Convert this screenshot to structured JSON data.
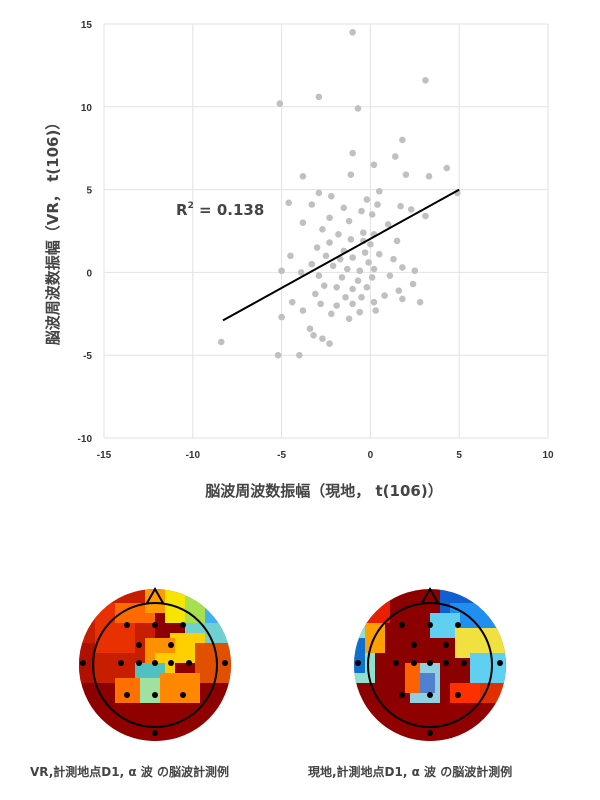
{
  "chart_data": {
    "type": "scatter",
    "title": "",
    "xlabel": "脳波周波数振幅（現地， t(106)）",
    "ylabel": "脳波周波数振幅（VR， t(106)）",
    "xlim": [
      -15,
      10
    ],
    "ylim": [
      -10,
      15
    ],
    "xticks": [
      -15,
      -10,
      -5,
      0,
      5,
      10
    ],
    "yticks": [
      -10,
      -5,
      0,
      5,
      10,
      15
    ],
    "grid": true,
    "annotation": "R² = 0.138",
    "annotation_parts": {
      "prefix": "R",
      "superscript": "2",
      "suffix": " = 0.138"
    },
    "point_color": "#c0c0c0",
    "trendline_color": "#000000",
    "trendline": {
      "x": [
        -8.3,
        5.0
      ],
      "y": [
        -2.9,
        5.0
      ]
    },
    "points": [
      [
        -1.0,
        14.5
      ],
      [
        3.1,
        11.6
      ],
      [
        -5.1,
        10.2
      ],
      [
        -2.9,
        10.6
      ],
      [
        -0.7,
        9.9
      ],
      [
        1.8,
        8.0
      ],
      [
        -1.0,
        7.2
      ],
      [
        4.3,
        6.3
      ],
      [
        3.3,
        5.8
      ],
      [
        2.0,
        5.9
      ],
      [
        0.2,
        6.5
      ],
      [
        1.4,
        7.0
      ],
      [
        -1.1,
        5.9
      ],
      [
        -3.8,
        5.8
      ],
      [
        4.9,
        4.8
      ],
      [
        -2.9,
        4.8
      ],
      [
        -0.2,
        4.4
      ],
      [
        0.5,
        4.9
      ],
      [
        -2.2,
        4.6
      ],
      [
        -4.6,
        4.2
      ],
      [
        -3.3,
        4.1
      ],
      [
        1.7,
        4.0
      ],
      [
        2.3,
        3.8
      ],
      [
        0.4,
        4.1
      ],
      [
        -1.5,
        3.9
      ],
      [
        -0.5,
        3.7
      ],
      [
        3.1,
        3.4
      ],
      [
        -2.3,
        3.3
      ],
      [
        -3.8,
        3.0
      ],
      [
        -1.2,
        3.1
      ],
      [
        0.1,
        3.5
      ],
      [
        1.0,
        2.9
      ],
      [
        -2.7,
        2.6
      ],
      [
        -1.8,
        2.3
      ],
      [
        -0.4,
        2.4
      ],
      [
        0.2,
        2.3
      ],
      [
        -1.1,
        2.0
      ],
      [
        -0.4,
        1.9
      ],
      [
        0.0,
        1.7
      ],
      [
        -2.3,
        1.8
      ],
      [
        -3.0,
        1.5
      ],
      [
        1.5,
        1.9
      ],
      [
        -1.5,
        1.3
      ],
      [
        -0.3,
        1.2
      ],
      [
        0.5,
        1.1
      ],
      [
        -4.5,
        1.0
      ],
      [
        -2.5,
        1.0
      ],
      [
        -1.0,
        0.9
      ],
      [
        -0.1,
        0.6
      ],
      [
        1.3,
        0.8
      ],
      [
        1.8,
        0.3
      ],
      [
        2.5,
        0.1
      ],
      [
        -3.3,
        0.5
      ],
      [
        -2.1,
        0.4
      ],
      [
        -1.3,
        0.2
      ],
      [
        -0.6,
        0.1
      ],
      [
        0.2,
        0.2
      ],
      [
        -5.0,
        0.1
      ],
      [
        -3.9,
        0.0
      ],
      [
        -2.9,
        -0.2
      ],
      [
        -1.6,
        -0.3
      ],
      [
        -0.7,
        -0.5
      ],
      [
        0.1,
        -0.3
      ],
      [
        1.1,
        -0.2
      ],
      [
        -2.6,
        -0.8
      ],
      [
        -1.9,
        -0.9
      ],
      [
        -1.0,
        -1.0
      ],
      [
        -0.2,
        -0.9
      ],
      [
        2.4,
        -0.7
      ],
      [
        1.6,
        -1.1
      ],
      [
        -3.1,
        -1.3
      ],
      [
        -1.4,
        -1.5
      ],
      [
        -0.5,
        -1.5
      ],
      [
        -4.4,
        -1.8
      ],
      [
        -2.8,
        -1.9
      ],
      [
        -1.9,
        -2.0
      ],
      [
        -1.0,
        -1.9
      ],
      [
        0.2,
        -1.8
      ],
      [
        1.8,
        -1.6
      ],
      [
        2.8,
        -1.8
      ],
      [
        -3.8,
        -2.3
      ],
      [
        -2.2,
        -2.5
      ],
      [
        -0.6,
        -2.4
      ],
      [
        0.3,
        -2.3
      ],
      [
        -5.0,
        -2.7
      ],
      [
        -3.4,
        -3.4
      ],
      [
        -3.2,
        -3.8
      ],
      [
        -2.7,
        -4.0
      ],
      [
        -2.3,
        -4.3
      ],
      [
        -8.4,
        -4.2
      ],
      [
        -5.2,
        -5.0
      ],
      [
        -4.0,
        -5.0
      ],
      [
        -1.2,
        -2.8
      ],
      [
        0.8,
        -1.4
      ],
      [
        -1.7,
        0.8
      ]
    ]
  },
  "topomaps": [
    {
      "caption": "VR,計測地点D1, α 波 の脳波計測例"
    },
    {
      "caption": "現地,計測地点D1, α 波 の脳波計測例"
    }
  ]
}
